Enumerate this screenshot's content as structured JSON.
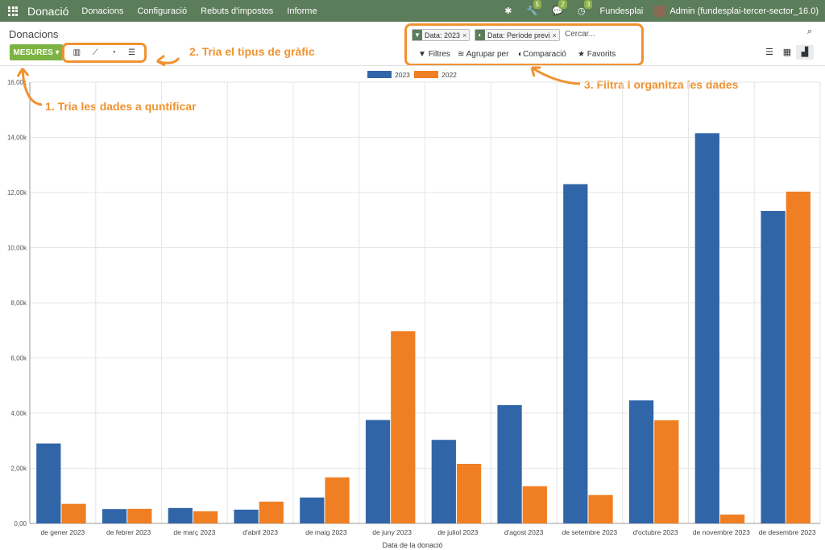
{
  "topbar": {
    "app_name": "Donació",
    "menus": [
      "Donacions",
      "Configuració",
      "Rebuts d'impostos",
      "Informe"
    ],
    "badges": {
      "tools": "5",
      "chat": "2",
      "activity": "3"
    },
    "company": "Fundesplai",
    "user": "Admin (fundesplai-tercer-sector_16.0)"
  },
  "page": {
    "title": "Donacions"
  },
  "controls": {
    "measures_label": "MESURES",
    "search_placeholder": "Cercar...",
    "facets": [
      "Data: 2023",
      "Data: Període previ"
    ],
    "buttons": {
      "filters": "Filtres",
      "groupby": "Agrupar per",
      "comparison": "Comparació",
      "favorites": "Favorits"
    }
  },
  "annotations": {
    "a1": "1. Tria les dades a quntificar",
    "a2": "2. Tria el tipus de gràfic",
    "a3": "3. Filtra i organitza les dades"
  },
  "colors": {
    "accent": "#f0922f",
    "series_2023": "#3065a8",
    "series_2022": "#ef7f22",
    "topbar": "#5c7d5a",
    "button": "#7cb342"
  },
  "chart_data": {
    "type": "bar",
    "xlabel": "Data de la donació",
    "ylabel": "",
    "ylim": [
      0,
      16000
    ],
    "yticks": [
      "0,00",
      "2,00k",
      "4,00k",
      "6,00k",
      "8,00k",
      "10,00k",
      "12,00k",
      "14,00k",
      "16,00k"
    ],
    "categories": [
      "de gener 2023",
      "de febrer 2023",
      "de març 2023",
      "d'abril 2023",
      "de maig 2023",
      "de juny 2023",
      "de juliol 2023",
      "d'agost 2023",
      "de setembre 2023",
      "d'octubre 2023",
      "de novembre 2023",
      "de desembre 2023"
    ],
    "series": [
      {
        "name": "2023",
        "color": "#3065a8",
        "values": [
          2900,
          520,
          560,
          500,
          940,
          3750,
          3030,
          4290,
          12300,
          4460,
          14150,
          11330
        ]
      },
      {
        "name": "2022",
        "color": "#ef7f22",
        "values": [
          710,
          530,
          440,
          790,
          1670,
          6970,
          2160,
          1350,
          1030,
          3740,
          320,
          12030
        ]
      }
    ],
    "legend": "top-center",
    "grid": true
  }
}
